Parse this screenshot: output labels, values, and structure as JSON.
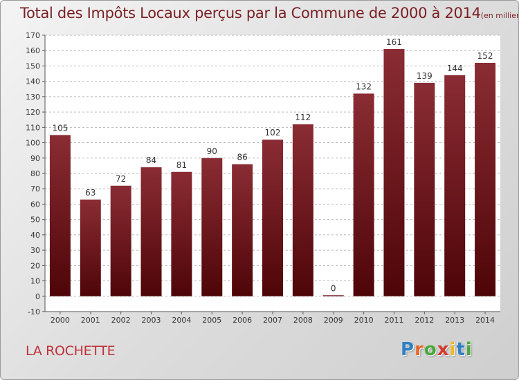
{
  "title": "Total des Impôts Locaux perçus par la Commune de 2000 à 2014",
  "unit_label": "(en milliers d'€)",
  "commune": "LA ROCHETTE",
  "logo": {
    "text": "Proxiti",
    "letter_colors": [
      "#2f7fc4",
      "#e8662a",
      "#49a83c",
      "#d33a2d",
      "#f0b823",
      "#2f7fc4",
      "#49a83c"
    ]
  },
  "colors": {
    "bar_top": "#8a2c34",
    "bar_bottom": "#4e0508",
    "title": "#7a1f24",
    "commune": "#c0303a",
    "grid": "#b8b8b8",
    "axis_text": "#333333"
  },
  "chart_data": {
    "type": "bar",
    "categories": [
      "2000",
      "2001",
      "2002",
      "2003",
      "2004",
      "2005",
      "2006",
      "2007",
      "2008",
      "2009",
      "2010",
      "2011",
      "2012",
      "2013",
      "2014"
    ],
    "values": [
      105,
      63,
      72,
      84,
      81,
      90,
      86,
      102,
      112,
      0,
      132,
      161,
      139,
      144,
      152
    ],
    "ylim": [
      -10,
      170
    ],
    "yticks": [
      -10,
      0,
      10,
      20,
      30,
      40,
      50,
      60,
      70,
      80,
      90,
      100,
      110,
      120,
      130,
      140,
      150,
      160,
      170
    ],
    "grid": true,
    "data_labels": true
  }
}
